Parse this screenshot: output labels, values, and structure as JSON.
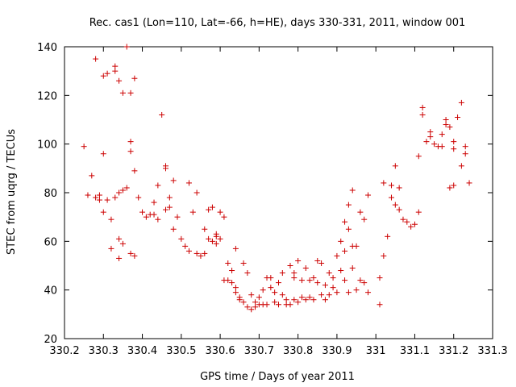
{
  "chart_data": {
    "type": "scatter",
    "title": "Rec. cas1 (Lon=110, Lat=-66, h=HE), days 330-331, 2011, window 001",
    "xlabel": "GPS time / Days of year 2011",
    "ylabel": "STEC from uqrg / TECUs",
    "xlim": [
      330.2,
      331.3
    ],
    "ylim": [
      20,
      140
    ],
    "x_ticks": [
      330.2,
      330.3,
      330.4,
      330.5,
      330.6,
      330.7,
      330.8,
      330.9,
      331.0,
      331.1,
      331.2,
      331.3
    ],
    "x_tick_labels": [
      "330.2",
      "330.3",
      "330.4",
      "330.5",
      "330.6",
      "330.7",
      "330.8",
      "330.9",
      "331",
      "331.1",
      "331.2",
      "331.3"
    ],
    "y_ticks": [
      20,
      40,
      60,
      80,
      100,
      120,
      140
    ],
    "y_tick_labels": [
      "20",
      "40",
      "60",
      "80",
      "100",
      "120",
      "140"
    ],
    "grid": false,
    "marker": "plus",
    "marker_color": "#cc0000",
    "series": [
      {
        "points": [
          [
            330.25,
            99
          ],
          [
            330.26,
            79
          ],
          [
            330.27,
            87
          ],
          [
            330.28,
            78
          ],
          [
            330.28,
            135
          ],
          [
            330.29,
            77
          ],
          [
            330.29,
            79
          ],
          [
            330.3,
            128
          ],
          [
            330.3,
            96
          ],
          [
            330.3,
            72
          ],
          [
            330.31,
            77
          ],
          [
            330.31,
            129
          ],
          [
            330.32,
            69
          ],
          [
            330.32,
            57
          ],
          [
            330.33,
            78
          ],
          [
            330.33,
            132
          ],
          [
            330.33,
            130
          ],
          [
            330.34,
            53
          ],
          [
            330.34,
            80
          ],
          [
            330.34,
            126
          ],
          [
            330.34,
            61
          ],
          [
            330.35,
            81
          ],
          [
            330.35,
            121
          ],
          [
            330.35,
            59
          ],
          [
            330.36,
            82
          ],
          [
            330.36,
            140
          ],
          [
            330.37,
            97
          ],
          [
            330.37,
            101
          ],
          [
            330.37,
            121
          ],
          [
            330.37,
            55
          ],
          [
            330.38,
            89
          ],
          [
            330.38,
            127
          ],
          [
            330.38,
            54
          ],
          [
            330.39,
            78
          ],
          [
            330.4,
            72
          ],
          [
            330.41,
            70
          ],
          [
            330.42,
            71
          ],
          [
            330.43,
            76
          ],
          [
            330.43,
            71
          ],
          [
            330.44,
            83
          ],
          [
            330.44,
            69
          ],
          [
            330.45,
            112
          ],
          [
            330.46,
            73
          ],
          [
            330.46,
            90
          ],
          [
            330.46,
            91
          ],
          [
            330.47,
            78
          ],
          [
            330.47,
            74
          ],
          [
            330.48,
            65
          ],
          [
            330.48,
            85
          ],
          [
            330.49,
            70
          ],
          [
            330.5,
            61
          ],
          [
            330.51,
            58
          ],
          [
            330.52,
            56
          ],
          [
            330.52,
            84
          ],
          [
            330.53,
            72
          ],
          [
            330.54,
            55
          ],
          [
            330.54,
            80
          ],
          [
            330.55,
            54
          ],
          [
            330.56,
            65
          ],
          [
            330.56,
            55
          ],
          [
            330.57,
            73
          ],
          [
            330.57,
            61
          ],
          [
            330.58,
            60
          ],
          [
            330.58,
            74
          ],
          [
            330.59,
            62
          ],
          [
            330.59,
            63
          ],
          [
            330.59,
            59
          ],
          [
            330.6,
            72
          ],
          [
            330.6,
            61
          ],
          [
            330.61,
            70
          ],
          [
            330.61,
            44
          ],
          [
            330.62,
            51
          ],
          [
            330.62,
            44
          ],
          [
            330.63,
            43
          ],
          [
            330.63,
            48
          ],
          [
            330.64,
            57
          ],
          [
            330.64,
            39
          ],
          [
            330.64,
            41
          ],
          [
            330.65,
            37
          ],
          [
            330.65,
            36
          ],
          [
            330.66,
            51
          ],
          [
            330.66,
            35
          ],
          [
            330.67,
            33
          ],
          [
            330.67,
            47
          ],
          [
            330.68,
            32
          ],
          [
            330.68,
            38
          ],
          [
            330.69,
            33
          ],
          [
            330.69,
            35
          ],
          [
            330.7,
            34
          ],
          [
            330.7,
            37
          ],
          [
            330.71,
            40
          ],
          [
            330.71,
            34
          ],
          [
            330.72,
            45
          ],
          [
            330.72,
            34
          ],
          [
            330.73,
            41
          ],
          [
            330.73,
            45
          ],
          [
            330.74,
            35
          ],
          [
            330.74,
            39
          ],
          [
            330.75,
            43
          ],
          [
            330.75,
            34
          ],
          [
            330.76,
            38
          ],
          [
            330.76,
            47
          ],
          [
            330.77,
            34
          ],
          [
            330.77,
            36
          ],
          [
            330.78,
            50
          ],
          [
            330.78,
            34
          ],
          [
            330.79,
            36
          ],
          [
            330.79,
            45
          ],
          [
            330.79,
            47
          ],
          [
            330.8,
            52
          ],
          [
            330.8,
            35
          ],
          [
            330.81,
            37
          ],
          [
            330.81,
            44
          ],
          [
            330.82,
            36
          ],
          [
            330.82,
            49
          ],
          [
            330.83,
            44
          ],
          [
            330.83,
            37
          ],
          [
            330.84,
            45
          ],
          [
            330.84,
            36
          ],
          [
            330.85,
            52
          ],
          [
            330.85,
            43
          ],
          [
            330.86,
            38
          ],
          [
            330.86,
            51
          ],
          [
            330.87,
            42
          ],
          [
            330.87,
            36
          ],
          [
            330.88,
            38
          ],
          [
            330.88,
            47
          ],
          [
            330.89,
            41
          ],
          [
            330.89,
            45
          ],
          [
            330.9,
            54
          ],
          [
            330.9,
            39
          ],
          [
            330.91,
            60
          ],
          [
            330.91,
            48
          ],
          [
            330.92,
            44
          ],
          [
            330.92,
            56
          ],
          [
            330.92,
            68
          ],
          [
            330.93,
            65
          ],
          [
            330.93,
            39
          ],
          [
            330.93,
            75
          ],
          [
            330.94,
            81
          ],
          [
            330.94,
            49
          ],
          [
            330.94,
            58
          ],
          [
            330.95,
            40
          ],
          [
            330.95,
            58
          ],
          [
            330.96,
            44
          ],
          [
            330.96,
            72
          ],
          [
            330.97,
            69
          ],
          [
            330.97,
            43
          ],
          [
            330.98,
            79
          ],
          [
            330.98,
            39
          ],
          [
            331.01,
            34
          ],
          [
            331.01,
            45
          ],
          [
            331.02,
            54
          ],
          [
            331.02,
            84
          ],
          [
            331.03,
            62
          ],
          [
            331.04,
            83
          ],
          [
            331.04,
            78
          ],
          [
            331.05,
            91
          ],
          [
            331.05,
            75
          ],
          [
            331.06,
            73
          ],
          [
            331.06,
            82
          ],
          [
            331.07,
            69
          ],
          [
            331.08,
            68
          ],
          [
            331.09,
            66
          ],
          [
            331.1,
            67
          ],
          [
            331.11,
            72
          ],
          [
            331.11,
            95
          ],
          [
            331.12,
            115
          ],
          [
            331.12,
            112
          ],
          [
            331.13,
            101
          ],
          [
            331.14,
            105
          ],
          [
            331.14,
            103
          ],
          [
            331.15,
            100
          ],
          [
            331.16,
            99
          ],
          [
            331.17,
            99
          ],
          [
            331.17,
            104
          ],
          [
            331.18,
            110
          ],
          [
            331.18,
            108
          ],
          [
            331.19,
            107
          ],
          [
            331.19,
            82
          ],
          [
            331.2,
            83
          ],
          [
            331.2,
            101
          ],
          [
            331.2,
            98
          ],
          [
            331.21,
            111
          ],
          [
            331.22,
            91
          ],
          [
            331.22,
            117
          ],
          [
            331.23,
            99
          ],
          [
            331.23,
            96
          ],
          [
            331.24,
            84
          ]
        ]
      }
    ]
  }
}
